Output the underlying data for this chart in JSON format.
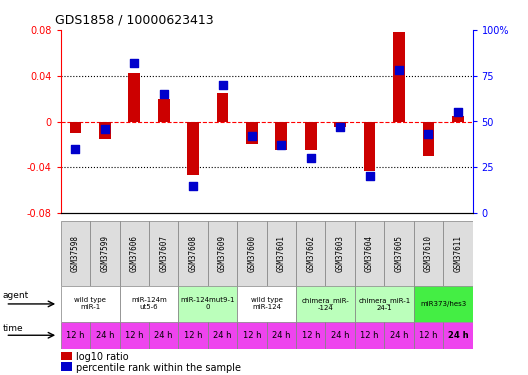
{
  "title": "GDS1858 / 10000623413",
  "samples": [
    "GSM37598",
    "GSM37599",
    "GSM37606",
    "GSM37607",
    "GSM37608",
    "GSM37609",
    "GSM37600",
    "GSM37601",
    "GSM37602",
    "GSM37603",
    "GSM37604",
    "GSM37605",
    "GSM37610",
    "GSM37611"
  ],
  "log10_ratio": [
    -0.01,
    -0.015,
    0.042,
    0.02,
    -0.047,
    0.025,
    -0.02,
    -0.025,
    -0.025,
    -0.005,
    -0.043,
    0.078,
    -0.03,
    0.005
  ],
  "percentile_rank": [
    35,
    46,
    82,
    65,
    15,
    70,
    42,
    37,
    30,
    47,
    20,
    78,
    43,
    55
  ],
  "ylim_left": [
    -0.08,
    0.08
  ],
  "ylim_right": [
    0,
    100
  ],
  "yticks_left": [
    -0.08,
    -0.04,
    0,
    0.04,
    0.08
  ],
  "yticks_right": [
    0,
    25,
    50,
    75,
    100
  ],
  "ytick_labels_left": [
    "-0.08",
    "-0.04",
    "0",
    "0.04",
    "0.08"
  ],
  "ytick_labels_right": [
    "0",
    "25",
    "50",
    "75",
    "100%"
  ],
  "hlines_dotted": [
    -0.04,
    0.04
  ],
  "agent_groups": [
    {
      "label": "wild type\nmiR-1",
      "cols": [
        0,
        1
      ],
      "color": "#ffffff"
    },
    {
      "label": "miR-124m\nut5-6",
      "cols": [
        2,
        3
      ],
      "color": "#ffffff"
    },
    {
      "label": "miR-124mut9-1\n0",
      "cols": [
        4,
        5
      ],
      "color": "#bbffbb"
    },
    {
      "label": "wild type\nmiR-124",
      "cols": [
        6,
        7
      ],
      "color": "#ffffff"
    },
    {
      "label": "chimera_miR-\n-124",
      "cols": [
        8,
        9
      ],
      "color": "#bbffbb"
    },
    {
      "label": "chimera_miR-1\n24-1",
      "cols": [
        10,
        11
      ],
      "color": "#bbffbb"
    },
    {
      "label": "miR373/hes3",
      "cols": [
        12,
        13
      ],
      "color": "#44ee44"
    }
  ],
  "time_labels": [
    "12 h",
    "24 h",
    "12 h",
    "24 h",
    "12 h",
    "24 h",
    "12 h",
    "24 h",
    "12 h",
    "24 h",
    "12 h",
    "24 h",
    "12 h",
    "24 h"
  ],
  "time_color": "#ee44ee",
  "bar_color": "#cc0000",
  "dot_color": "#0000cc",
  "legend_red": "log10 ratio",
  "legend_blue": "percentile rank within the sample"
}
